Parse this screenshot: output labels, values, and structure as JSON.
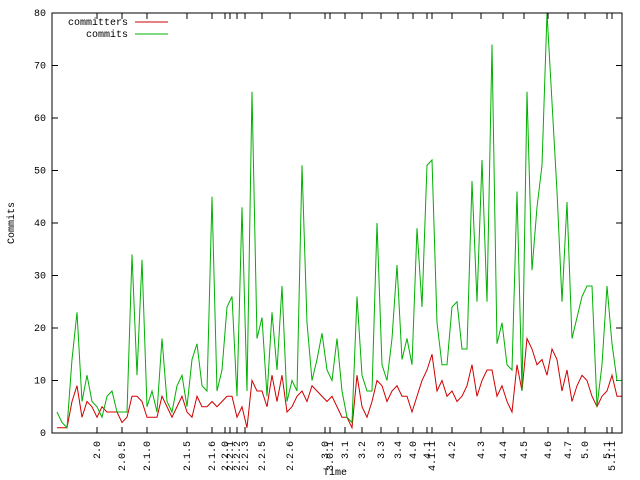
{
  "chart_data": {
    "type": "line",
    "x_label": "Time",
    "y_label": "Commits",
    "x": [
      1,
      2,
      3,
      4,
      5,
      6,
      7,
      8,
      9,
      10,
      11,
      12,
      13,
      14,
      15,
      16,
      17,
      18,
      19,
      20,
      21,
      22,
      23,
      24,
      25,
      26,
      27,
      28,
      29,
      30,
      31,
      32,
      33,
      34,
      35,
      36,
      37,
      38,
      39,
      40,
      41,
      42,
      43,
      44,
      45,
      46,
      47,
      48,
      49,
      50,
      51,
      52,
      53,
      54,
      55,
      56,
      57,
      58,
      59,
      60,
      61,
      62,
      63,
      64,
      65,
      66,
      67,
      68,
      69,
      70,
      71,
      72,
      73,
      74,
      75,
      76,
      77,
      78,
      79,
      80,
      81,
      82,
      83,
      84,
      85,
      86,
      87,
      88,
      89,
      90,
      91,
      92,
      93,
      94,
      95,
      96,
      97,
      98,
      99,
      100,
      101,
      102,
      103,
      104,
      105,
      106,
      107,
      108,
      109,
      110,
      111,
      112,
      113,
      114
    ],
    "series": [
      {
        "name": "committers",
        "color": "#d00000",
        "values": [
          1,
          1,
          1,
          6,
          9,
          3,
          6,
          5,
          3,
          5,
          4,
          4,
          4,
          2,
          3,
          7,
          7,
          6,
          3,
          3,
          3,
          7,
          5,
          3,
          5,
          7,
          4,
          3,
          7,
          5,
          5,
          6,
          5,
          6,
          7,
          7,
          3,
          5,
          1,
          10,
          8,
          8,
          5,
          11,
          6,
          11,
          4,
          5,
          7,
          8,
          6,
          9,
          8,
          7,
          6,
          7,
          5,
          3,
          3,
          1,
          11,
          5,
          3,
          6,
          10,
          9,
          6,
          8,
          9,
          7,
          7,
          4,
          7,
          10,
          12,
          15,
          8,
          10,
          7,
          8,
          6,
          7,
          9,
          13,
          7,
          10,
          12,
          12,
          7,
          9,
          6,
          4,
          13,
          8,
          18,
          16,
          13,
          14,
          11,
          16,
          14,
          8,
          12,
          6,
          9,
          11,
          10,
          7,
          5,
          7,
          8,
          11,
          7,
          7
        ]
      },
      {
        "name": "commits",
        "color": "#00b000",
        "values": [
          4,
          2,
          1,
          14,
          23,
          6,
          11,
          6,
          5,
          3,
          7,
          8,
          4,
          4,
          4,
          34,
          11,
          33,
          5,
          8,
          4,
          18,
          6,
          4,
          9,
          11,
          5,
          14,
          17,
          9,
          8,
          45,
          8,
          12,
          24,
          26,
          7,
          43,
          8,
          65,
          18,
          22,
          7,
          23,
          12,
          28,
          6,
          10,
          8,
          51,
          21,
          10,
          14,
          19,
          12,
          10,
          18,
          8,
          3,
          2,
          26,
          11,
          8,
          8,
          40,
          13,
          10,
          18,
          32,
          14,
          18,
          13,
          39,
          24,
          51,
          52,
          21,
          13,
          13,
          24,
          25,
          16,
          16,
          48,
          25,
          52,
          25,
          74,
          17,
          21,
          13,
          12,
          46,
          8,
          65,
          31,
          43,
          51,
          80,
          63,
          46,
          25,
          44,
          18,
          22,
          26,
          28,
          28,
          5,
          13,
          28,
          17,
          10,
          10
        ]
      }
    ],
    "xlim": [
      0,
      114
    ],
    "xticks": [
      {
        "value": 9,
        "label": "2.0"
      },
      {
        "value": 14,
        "label": "2.0.5"
      },
      {
        "value": 19,
        "label": "2.1.0"
      },
      {
        "value": 27,
        "label": "2.1.5"
      },
      {
        "value": 32,
        "label": "2.1.6"
      },
      {
        "value": 34.6,
        "label": "2.2.0"
      },
      {
        "value": 35.6,
        "label": "2.2.1"
      },
      {
        "value": 37,
        "label": "2.2.2"
      },
      {
        "value": 38.6,
        "label": "2.2.3"
      },
      {
        "value": 42,
        "label": "2.2.5"
      },
      {
        "value": 47.6,
        "label": "2.2.6"
      },
      {
        "value": 54.6,
        "label": "3.0"
      },
      {
        "value": 55.6,
        "label": "3.0.1"
      },
      {
        "value": 58.6,
        "label": "3.1"
      },
      {
        "value": 62,
        "label": "3.2"
      },
      {
        "value": 65.8,
        "label": "3.3"
      },
      {
        "value": 69.2,
        "label": "3.4"
      },
      {
        "value": 72.2,
        "label": "4.0"
      },
      {
        "value": 75,
        "label": "4.1"
      },
      {
        "value": 76,
        "label": "4.1.1"
      },
      {
        "value": 80,
        "label": "4.2"
      },
      {
        "value": 85.8,
        "label": "4.3"
      },
      {
        "value": 90.2,
        "label": "4.4"
      },
      {
        "value": 94.4,
        "label": "4.5"
      },
      {
        "value": 99.2,
        "label": "4.6"
      },
      {
        "value": 103.2,
        "label": "4.7"
      },
      {
        "value": 106.6,
        "label": "5.0"
      },
      {
        "value": 111,
        "label": "5.1"
      },
      {
        "value": 112,
        "label": "5.1.1"
      }
    ],
    "ylim": [
      0,
      80
    ],
    "yticks": [
      0,
      10,
      20,
      30,
      40,
      50,
      60,
      70,
      80
    ],
    "legend": "top-left",
    "grid": false
  }
}
